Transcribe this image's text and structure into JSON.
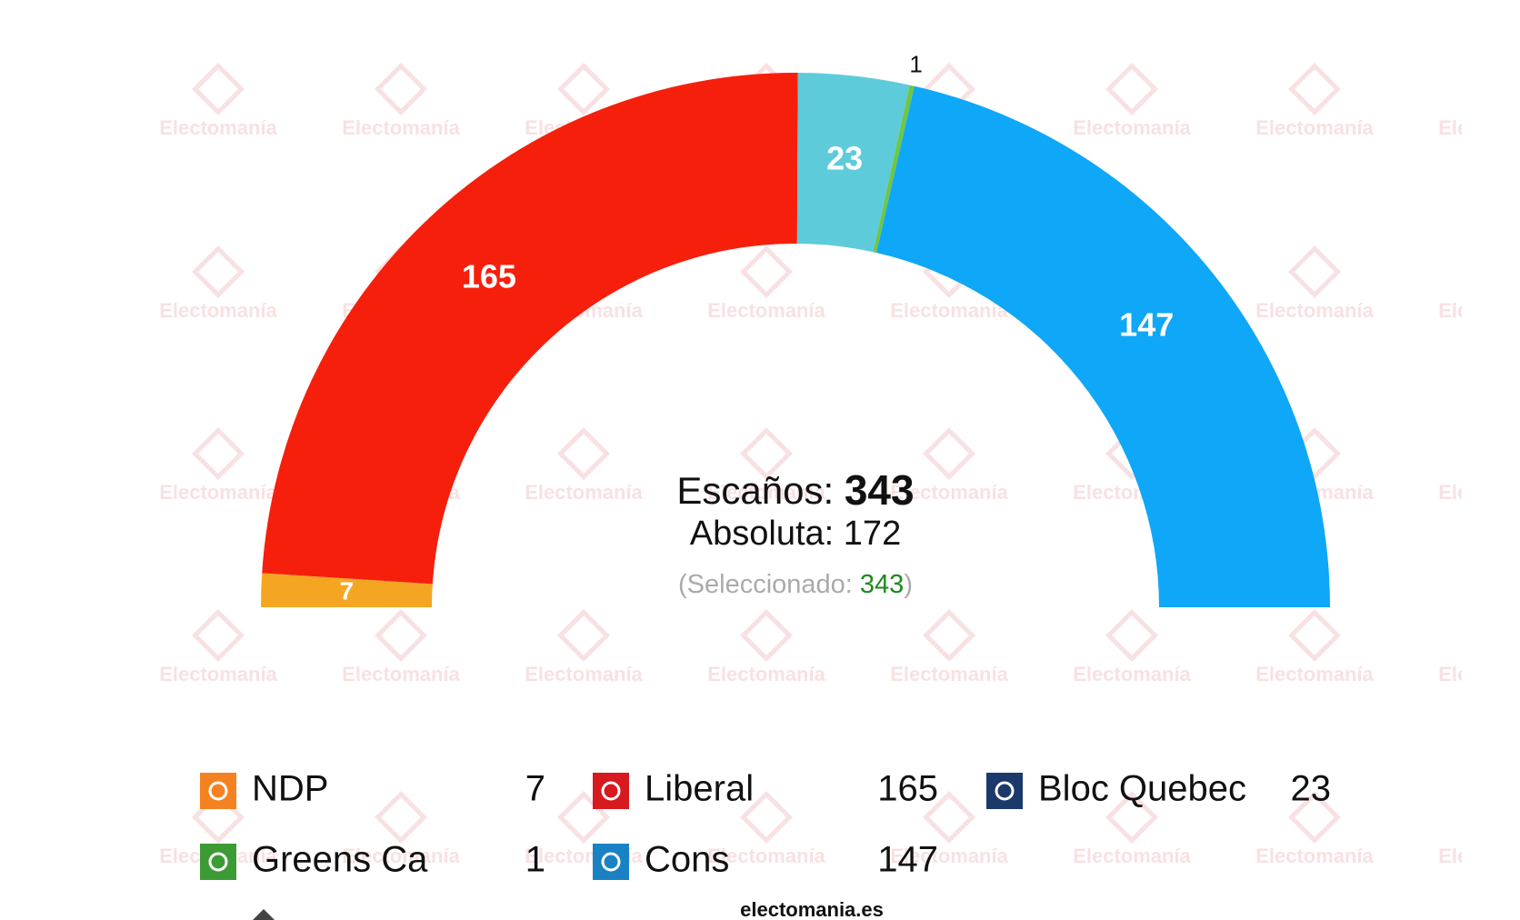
{
  "chart_data": {
    "type": "semicircle",
    "series": [
      {
        "name": "NDP",
        "color": "#f4a623",
        "legend_color": "#f58220",
        "value": 7
      },
      {
        "name": "Liberal",
        "color": "#f61f0c",
        "legend_color": "#d71920",
        "value": 165
      },
      {
        "name": "Bloc Quebec",
        "color": "#5ecbdb",
        "legend_color": "#1b3a6b",
        "value": 23
      },
      {
        "name": "Greens Ca",
        "color": "#6ec743",
        "legend_color": "#3d9b35",
        "value": 1
      },
      {
        "name": "Cons",
        "color": "#0fa7f7",
        "legend_color": "#1a82c4",
        "value": 147
      }
    ],
    "legend_order": [
      0,
      1,
      2,
      3,
      4
    ],
    "seats_label": "Escaños:",
    "seats": 343,
    "majority_label": "Absoluta:",
    "majority": 172,
    "selected_prefix": "(Seleccionado:",
    "selected": 343,
    "selected_suffix": ")",
    "watermark": "Electomanía",
    "footer": "electomania.es"
  }
}
